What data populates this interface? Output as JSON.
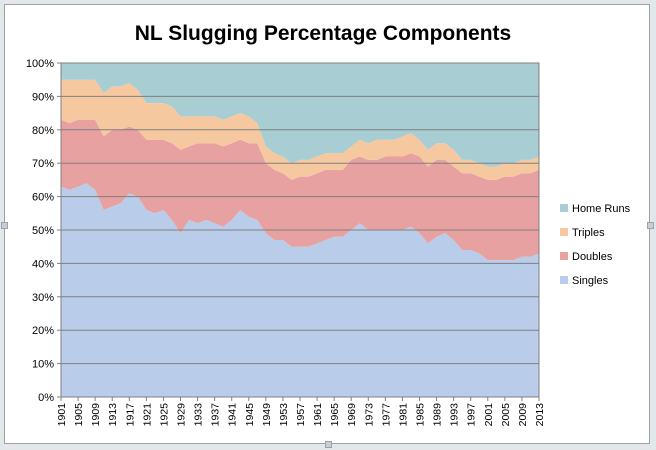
{
  "chart_data": {
    "type": "area",
    "stacked": true,
    "percent_stacked": true,
    "title": "NL Slugging Percentage Components",
    "xlabel": "",
    "ylabel": "",
    "ylim": [
      0,
      100
    ],
    "y_ticks": [
      "0%",
      "10%",
      "20%",
      "30%",
      "40%",
      "50%",
      "60%",
      "70%",
      "80%",
      "90%",
      "100%"
    ],
    "x_range": [
      1901,
      2013
    ],
    "x_tick_labels": [
      "1901",
      "1905",
      "1909",
      "1913",
      "1917",
      "1921",
      "1925",
      "1929",
      "1933",
      "1937",
      "1941",
      "1945",
      "1949",
      "1953",
      "1957",
      "1961",
      "1965",
      "1969",
      "1973",
      "1977",
      "1981",
      "1985",
      "1989",
      "1993",
      "1997",
      "2001",
      "2005",
      "2009",
      "2013"
    ],
    "grid": "horizontal",
    "legend_position": "right",
    "legend": [
      "Home Runs",
      "Triples",
      "Doubles",
      "Singles"
    ],
    "colors": {
      "Singles": "#b9cdeb",
      "Doubles": "#e8a1a1",
      "Triples": "#f6c8a0",
      "Home Runs": "#a8cdd2"
    },
    "series": [
      {
        "name": "Singles",
        "x": [
          1901,
          1903,
          1905,
          1907,
          1909,
          1911,
          1913,
          1915,
          1917,
          1919,
          1921,
          1923,
          1925,
          1927,
          1929,
          1931,
          1933,
          1935,
          1937,
          1939,
          1941,
          1943,
          1945,
          1947,
          1949,
          1951,
          1953,
          1955,
          1957,
          1959,
          1961,
          1963,
          1965,
          1967,
          1969,
          1971,
          1973,
          1975,
          1977,
          1979,
          1981,
          1983,
          1985,
          1987,
          1989,
          1991,
          1993,
          1995,
          1997,
          1999,
          2001,
          2003,
          2005,
          2007,
          2009,
          2011,
          2013
        ],
        "values": [
          63,
          62,
          63,
          64,
          62,
          56,
          57,
          58,
          61,
          60,
          56,
          55,
          56,
          53,
          49,
          53,
          52,
          53,
          52,
          51,
          53,
          56,
          54,
          53,
          49,
          47,
          47,
          45,
          45,
          45,
          46,
          47,
          48,
          48,
          50,
          52,
          50,
          50,
          50,
          50,
          50,
          51,
          49,
          46,
          48,
          49,
          47,
          44,
          44,
          43,
          41,
          41,
          41,
          41,
          42,
          42,
          43
        ]
      },
      {
        "name": "Doubles",
        "x": [
          1901,
          1903,
          1905,
          1907,
          1909,
          1911,
          1913,
          1915,
          1917,
          1919,
          1921,
          1923,
          1925,
          1927,
          1929,
          1931,
          1933,
          1935,
          1937,
          1939,
          1941,
          1943,
          1945,
          1947,
          1949,
          1951,
          1953,
          1955,
          1957,
          1959,
          1961,
          1963,
          1965,
          1967,
          1969,
          1971,
          1973,
          1975,
          1977,
          1979,
          1981,
          1983,
          1985,
          1987,
          1989,
          1991,
          1993,
          1995,
          1997,
          1999,
          2001,
          2003,
          2005,
          2007,
          2009,
          2011,
          2013
        ],
        "values": [
          20,
          20,
          20,
          19,
          21,
          22,
          23,
          22,
          20,
          20,
          21,
          22,
          21,
          23,
          25,
          22,
          24,
          23,
          24,
          24,
          23,
          21,
          22,
          23,
          21,
          21,
          20,
          20,
          21,
          21,
          21,
          21,
          20,
          20,
          21,
          20,
          21,
          21,
          22,
          22,
          22,
          22,
          23,
          23,
          23,
          22,
          22,
          23,
          23,
          23,
          24,
          24,
          25,
          25,
          25,
          25,
          25
        ]
      },
      {
        "name": "Triples",
        "x": [
          1901,
          1903,
          1905,
          1907,
          1909,
          1911,
          1913,
          1915,
          1917,
          1919,
          1921,
          1923,
          1925,
          1927,
          1929,
          1931,
          1933,
          1935,
          1937,
          1939,
          1941,
          1943,
          1945,
          1947,
          1949,
          1951,
          1953,
          1955,
          1957,
          1959,
          1961,
          1963,
          1965,
          1967,
          1969,
          1971,
          1973,
          1975,
          1977,
          1979,
          1981,
          1983,
          1985,
          1987,
          1989,
          1991,
          1993,
          1995,
          1997,
          1999,
          2001,
          2003,
          2005,
          2007,
          2009,
          2011,
          2013
        ],
        "values": [
          12,
          13,
          12,
          12,
          12,
          13,
          13,
          13,
          13,
          12,
          11,
          11,
          11,
          11,
          10,
          9,
          8,
          8,
          8,
          8,
          8,
          8,
          8,
          6,
          5,
          5,
          5,
          5,
          5,
          5,
          5,
          5,
          5,
          5,
          4,
          5,
          5,
          6,
          5,
          5,
          6,
          6,
          5,
          5,
          5,
          5,
          5,
          4,
          4,
          4,
          4,
          4,
          4,
          4,
          4,
          4,
          4
        ]
      },
      {
        "name": "Home Runs",
        "x": [
          1901,
          1903,
          1905,
          1907,
          1909,
          1911,
          1913,
          1915,
          1917,
          1919,
          1921,
          1923,
          1925,
          1927,
          1929,
          1931,
          1933,
          1935,
          1937,
          1939,
          1941,
          1943,
          1945,
          1947,
          1949,
          1951,
          1953,
          1955,
          1957,
          1959,
          1961,
          1963,
          1965,
          1967,
          1969,
          1971,
          1973,
          1975,
          1977,
          1979,
          1981,
          1983,
          1985,
          1987,
          1989,
          1991,
          1993,
          1995,
          1997,
          1999,
          2001,
          2003,
          2005,
          2007,
          2009,
          2011,
          2013
        ],
        "values": [
          5,
          5,
          5,
          5,
          5,
          9,
          7,
          7,
          6,
          8,
          12,
          12,
          12,
          13,
          16,
          16,
          16,
          16,
          16,
          17,
          16,
          15,
          16,
          18,
          25,
          27,
          28,
          30,
          29,
          29,
          28,
          27,
          27,
          27,
          25,
          23,
          24,
          23,
          23,
          23,
          22,
          21,
          23,
          26,
          24,
          24,
          26,
          29,
          29,
          30,
          31,
          31,
          30,
          30,
          29,
          29,
          28
        ]
      }
    ]
  }
}
